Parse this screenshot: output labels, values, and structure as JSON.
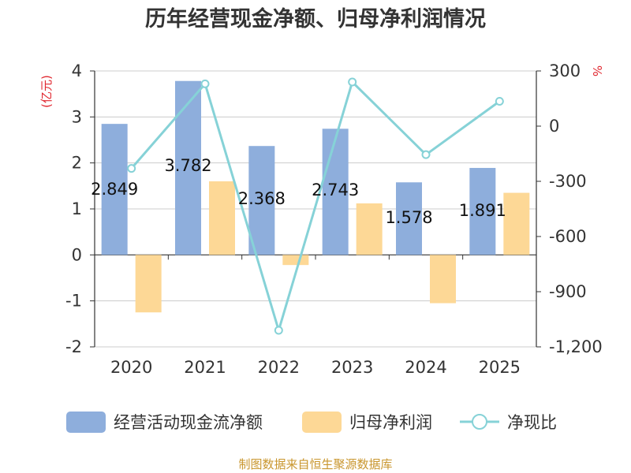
{
  "chart_data": {
    "type": "bar",
    "title": "历年经营现金净额、归母净利润情况",
    "categories": [
      "2020",
      "2021",
      "2022",
      "2023",
      "2024",
      "2025"
    ],
    "left_axis": {
      "unit": "(亿元)",
      "ylim": [
        -2,
        4
      ],
      "ticks": [
        -2,
        -1,
        0,
        1,
        2,
        3,
        4
      ]
    },
    "right_axis": {
      "unit": "%",
      "ylim": [
        -1200,
        300
      ],
      "ticks": [
        -1200,
        -900,
        -600,
        -300,
        0,
        300
      ],
      "tick_labels": [
        "-1,200",
        "-900",
        "-600",
        "-300",
        "0",
        "300"
      ]
    },
    "series": [
      {
        "name": "经营活动现金流净额",
        "type": "bar",
        "axis": "left",
        "color": "#8eaedc",
        "values": [
          2.849,
          3.782,
          2.368,
          2.743,
          1.578,
          1.891
        ],
        "labels": [
          "2.849",
          "3.782",
          "2.368",
          "2.743",
          "1.578",
          "1.891"
        ]
      },
      {
        "name": "归母净利润",
        "type": "bar",
        "axis": "left",
        "color": "#fdd896",
        "values": [
          -1.25,
          1.6,
          -0.22,
          1.12,
          -1.05,
          1.35
        ]
      },
      {
        "name": "净现比",
        "type": "line",
        "axis": "right",
        "color": "#86d2d7",
        "values": [
          -230,
          230,
          -1110,
          240,
          -155,
          135
        ]
      }
    ]
  },
  "footer": {
    "source": "制图数据来自恒生聚源数据库"
  }
}
